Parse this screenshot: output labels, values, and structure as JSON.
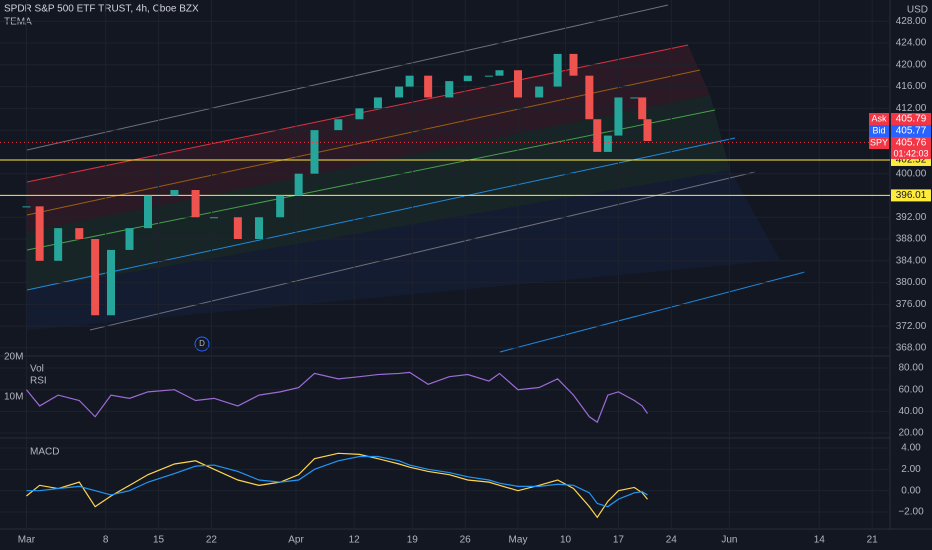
{
  "header": {
    "title": "SPDR S&P 500 ETF TRUST, 4h, Cboe BZX",
    "indicator": "TEMA",
    "currency": "USD",
    "marker": "D"
  },
  "chart_data": [
    {
      "type": "candlestick",
      "up_color": "#26a69a",
      "down_color": "#ef5350",
      "x": [
        5,
        7.5,
        11,
        15,
        18,
        21,
        24.5,
        28,
        33,
        37,
        40.5,
        45,
        49,
        53,
        56.5,
        59.5,
        64,
        68,
        71.5,
        75.5,
        77.5,
        81,
        85,
        88.5,
        92.5,
        94.5,
        98,
        102,
        105.5,
        108.5,
        111.5,
        113,
        115,
        117,
        120,
        121.5,
        122.5
      ],
      "values": [
        394,
        384,
        390,
        388,
        374,
        386,
        390,
        396,
        397,
        392,
        392,
        388,
        392,
        396,
        400,
        408,
        410,
        412,
        414,
        416,
        418,
        414,
        417,
        418,
        418,
        419,
        414,
        416,
        422,
        418,
        410,
        404,
        407,
        414,
        414,
        410,
        406
      ],
      "xlim": [
        0,
        168
      ],
      "xticks": [
        {
          "value": 5,
          "label": "Mar"
        },
        {
          "value": 20,
          "label": "8"
        },
        {
          "value": 30,
          "label": "15"
        },
        {
          "value": 40,
          "label": "22"
        },
        {
          "value": 56,
          "label": "Apr"
        },
        {
          "value": 67,
          "label": "12"
        },
        {
          "value": 78,
          "label": "19"
        },
        {
          "value": 88,
          "label": "26"
        },
        {
          "value": 98,
          "label": "May"
        },
        {
          "value": 107,
          "label": "10"
        },
        {
          "value": 117,
          "label": "17"
        },
        {
          "value": 127,
          "label": "24"
        },
        {
          "value": 138,
          "label": "Jun"
        },
        {
          "value": 155,
          "label": "14"
        },
        {
          "value": 165,
          "label": "21"
        }
      ],
      "ylim": [
        366.7,
        431.9
      ],
      "yticks": [
        {
          "value": 428,
          "label": "428.00"
        },
        {
          "value": 424,
          "label": "424.00"
        },
        {
          "value": 420,
          "label": "420.00"
        },
        {
          "value": 416,
          "label": "416.00"
        },
        {
          "value": 412,
          "label": "412.00"
        },
        {
          "value": 408,
          "label": "408.00"
        },
        {
          "value": 400,
          "label": "400.00"
        },
        {
          "value": 392,
          "label": "392.00"
        },
        {
          "value": 388,
          "label": "388.00"
        },
        {
          "value": 384,
          "label": "384.00"
        },
        {
          "value": 380,
          "label": "380.00"
        },
        {
          "value": 376,
          "label": "376.00"
        },
        {
          "value": 372,
          "label": "372.00"
        },
        {
          "value": 368,
          "label": "368.00"
        }
      ],
      "levels": [
        {
          "value": 402.52,
          "color": "#ffeb3b"
        },
        {
          "value": 396.01,
          "color": "#ffeb3b"
        }
      ],
      "quotes": [
        {
          "name": "Ask",
          "value": 405.79,
          "color": "#f23645"
        },
        {
          "name": "Bid",
          "value": 405.77,
          "color": "#2962ff"
        },
        {
          "name": "SPY",
          "value": 405.76,
          "color": "#f23645",
          "countdown": "01:42:03"
        }
      ]
    },
    {
      "type": "line",
      "title": "RSI",
      "volume_title": "Vol",
      "volume_ticks": [
        {
          "value": 20000000,
          "label": "20M"
        },
        {
          "value": 10000000,
          "label": "10M"
        }
      ],
      "volume_lim": [
        0,
        20000000
      ],
      "x": [
        5,
        7.5,
        11,
        15,
        18,
        21,
        24.5,
        28,
        33,
        37,
        40.5,
        45,
        49,
        53,
        56.5,
        59.5,
        64,
        68,
        71.5,
        75.5,
        77.5,
        81,
        85,
        88.5,
        92.5,
        94.5,
        98,
        102,
        105.5,
        108.5,
        111.5,
        113,
        115,
        117,
        120,
        121.5,
        122.5
      ],
      "series": [
        {
          "name": "RSI",
          "color": "#9c6bd6",
          "values": [
            60,
            45,
            55,
            50,
            35,
            55,
            52,
            58,
            60,
            50,
            52,
            45,
            55,
            58,
            62,
            75,
            70,
            72,
            74,
            75,
            76,
            65,
            72,
            74,
            68,
            75,
            60,
            62,
            70,
            55,
            35,
            30,
            55,
            58,
            50,
            45,
            38
          ]
        }
      ],
      "ylim": [
        16.3,
        90.2
      ],
      "yticks": [
        {
          "value": 80,
          "label": "80.00"
        },
        {
          "value": 60,
          "label": "60.00"
        },
        {
          "value": 40,
          "label": "40.00"
        },
        {
          "value": 20,
          "label": "20.00"
        }
      ]
    },
    {
      "type": "line",
      "title": "MACD",
      "x": [
        5,
        7.5,
        11,
        15,
        18,
        21,
        24.5,
        28,
        33,
        37,
        40.5,
        45,
        49,
        53,
        56.5,
        59.5,
        64,
        68,
        71.5,
        75.5,
        77.5,
        81,
        85,
        88.5,
        92.5,
        94.5,
        98,
        102,
        105.5,
        108.5,
        111.5,
        113,
        115,
        117,
        120,
        121.5,
        122.5
      ],
      "series": [
        {
          "name": "MACD",
          "color": "#ffd54f",
          "values": [
            -0.5,
            0.5,
            0.2,
            0.8,
            -1.5,
            -0.5,
            0.5,
            1.5,
            2.5,
            2.8,
            2,
            1,
            0.5,
            0.8,
            1.5,
            3,
            3.5,
            3.4,
            3,
            2.5,
            2.2,
            1.8,
            1.5,
            1,
            0.8,
            0.5,
            0,
            0.5,
            1,
            0.2,
            -1.5,
            -2.5,
            -1,
            0,
            0.3,
            -0.2,
            -0.8
          ]
        },
        {
          "name": "Signal",
          "color": "#2196f3",
          "values": [
            0,
            0,
            0.2,
            0.4,
            0,
            -0.4,
            0,
            0.8,
            1.6,
            2.3,
            2.4,
            1.8,
            1,
            0.8,
            1,
            2,
            2.8,
            3.2,
            3.2,
            2.8,
            2.4,
            2,
            1.7,
            1.3,
            1,
            0.7,
            0.4,
            0.4,
            0.6,
            0.5,
            -0.2,
            -1.2,
            -1.5,
            -0.8,
            -0.2,
            -0.1,
            -0.4
          ]
        }
      ],
      "ylim": [
        -3.5,
        4.75
      ],
      "yticks": [
        {
          "value": 4,
          "label": "4.00"
        },
        {
          "value": 2,
          "label": "2.00"
        },
        {
          "value": 0,
          "label": "0.00"
        },
        {
          "value": -2,
          "label": "−2.00"
        }
      ]
    }
  ]
}
